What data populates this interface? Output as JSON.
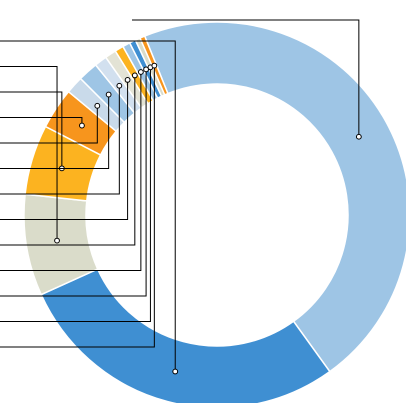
{
  "chart_data": {
    "type": "pie",
    "variant": "donut",
    "labels_shown": false,
    "slices": [
      {
        "value": 44.1,
        "color": "#9ec5e5"
      },
      {
        "value": 26.9,
        "color": "#3f8fd2"
      },
      {
        "value": 8.1,
        "color": "#dadcca"
      },
      {
        "value": 5.6,
        "color": "#fcb320"
      },
      {
        "value": 3.3,
        "color": "#f7951d"
      },
      {
        "value": 1.4,
        "color": "#c9daea"
      },
      {
        "value": 1.6,
        "color": "#9ec5e5"
      },
      {
        "value": 1.0,
        "color": "#d2e0ef"
      },
      {
        "value": 0.9,
        "color": "#e3e3d5"
      },
      {
        "value": 0.7,
        "color": "#fcb320"
      },
      {
        "value": 0.6,
        "color": "#9ec5e5"
      },
      {
        "value": 0.5,
        "color": "#3f8fd2"
      },
      {
        "value": 0.4,
        "color": "#dadcca"
      },
      {
        "value": 0.4,
        "color": "#f7951d"
      }
    ],
    "leader_line_color": "#000000"
  }
}
